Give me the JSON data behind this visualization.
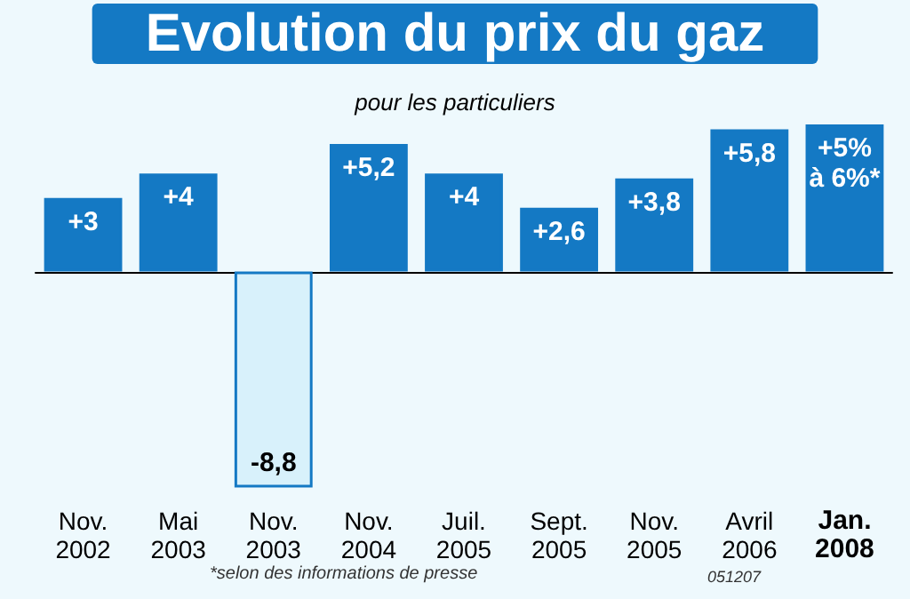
{
  "chart_data": {
    "type": "bar",
    "title": "Evolution du prix du gaz",
    "subtitle": "pour les particuliers",
    "categories": [
      "Nov.\n2002",
      "Mai\n2003",
      "Nov.\n2003",
      "Nov.\n2004",
      "Juil.\n2005",
      "Sept.\n2005",
      "Nov.\n2005",
      "Avril\n2006",
      "Jan.\n2008"
    ],
    "values": [
      3,
      4,
      -8.8,
      5.2,
      4,
      2.6,
      3.8,
      5.8,
      6
    ],
    "value_labels": [
      "+3",
      "+4",
      "-8,8",
      "+5,2",
      "+4",
      "+2,6",
      "+3,8",
      "+5,8",
      "+5%\nà 6%*"
    ],
    "colors": [
      "#1479c4",
      "#1479c4",
      "#d8f1fb",
      "#1479c4",
      "#1479c4",
      "#1479c4",
      "#1479c4",
      "#1479c4",
      "#1479c4"
    ],
    "annotations": [
      "*selon des informations de presse",
      "051207"
    ]
  }
}
